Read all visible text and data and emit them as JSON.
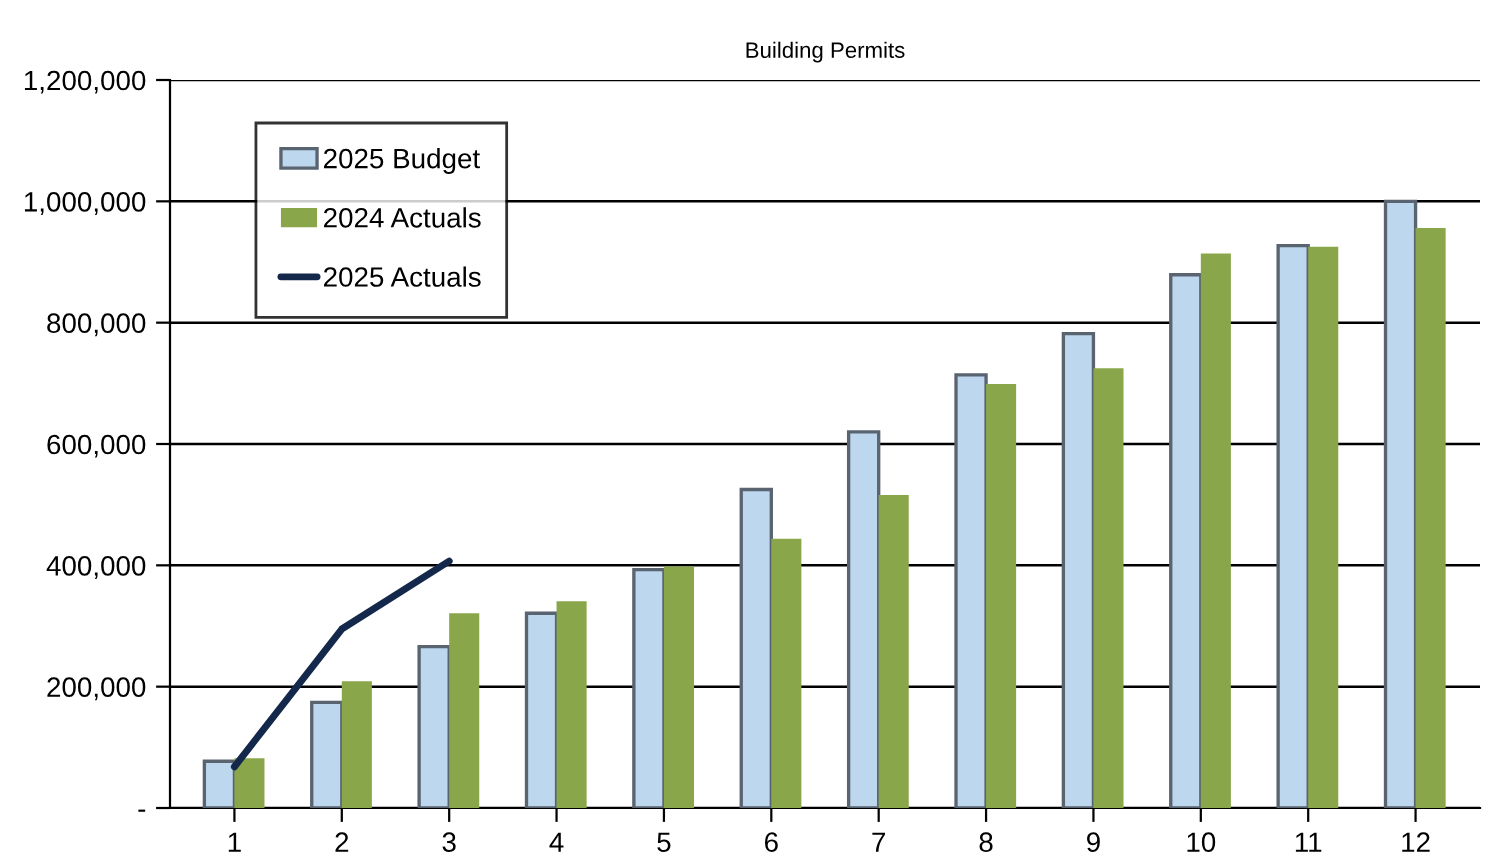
{
  "chart_data": {
    "type": "bar",
    "title": "Building Permits",
    "categories": [
      "1",
      "2",
      "3",
      "4",
      "5",
      "6",
      "7",
      "8",
      "9",
      "10",
      "11",
      "12"
    ],
    "series": [
      {
        "name": "2025 Budget",
        "color": "#bdd7ee",
        "values": [
          77000,
          174000,
          266000,
          321000,
          393000,
          525000,
          620000,
          714000,
          782000,
          879000,
          927000,
          1000000
        ]
      },
      {
        "name": "2024 Actuals",
        "color": "#8aa64a",
        "values": [
          82000,
          209000,
          321000,
          341000,
          398000,
          444000,
          516000,
          699000,
          725000,
          914000,
          925000,
          956000
        ]
      },
      {
        "name": "2025 Actuals",
        "type": "line",
        "color": "#14284b",
        "values": [
          68000,
          295000,
          407000,
          null,
          null,
          null,
          null,
          null,
          null,
          null,
          null,
          null
        ]
      }
    ],
    "ylim": [
      0,
      1200000
    ],
    "yticks": [
      {
        "value": 0,
        "label": "-"
      },
      {
        "value": 200000,
        "label": "200,000"
      },
      {
        "value": 400000,
        "label": "400,000"
      },
      {
        "value": 600000,
        "label": "600,000"
      },
      {
        "value": 800000,
        "label": "800,000"
      },
      {
        "value": 1000000,
        "label": "1,000,000"
      },
      {
        "value": 1200000,
        "label": "1,200,000"
      }
    ],
    "grid": "y",
    "legend": "top left",
    "marker": "none",
    "line_style": "solid"
  }
}
